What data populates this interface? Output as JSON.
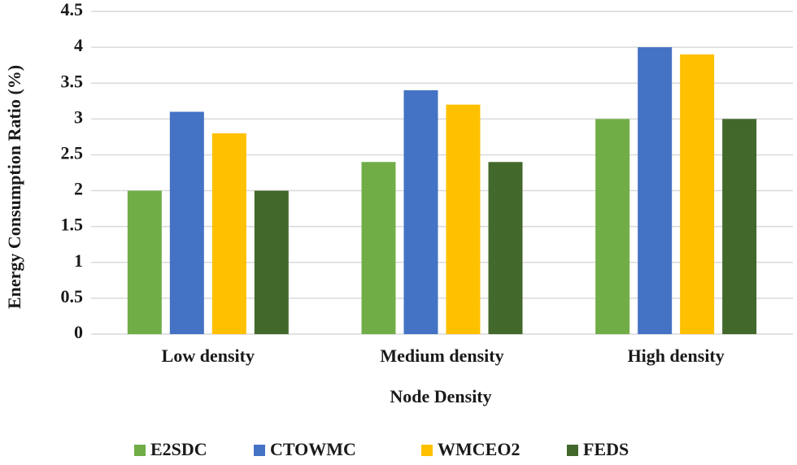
{
  "chart_data": {
    "type": "bar",
    "y_label": "Energy Consumption Ratio (%)",
    "x_label": "Node Density",
    "categories": [
      "Low density",
      "Medium density",
      "High density"
    ],
    "series": [
      {
        "name": "E2SDC",
        "color": "#70ad47",
        "values": [
          2,
          2.4,
          3
        ]
      },
      {
        "name": "CTOWMC",
        "color": "#4472c4",
        "values": [
          3.1,
          3.4,
          4
        ]
      },
      {
        "name": "WMCEO2",
        "color": "#ffc000",
        "values": [
          2.8,
          3.2,
          3.9
        ]
      },
      {
        "name": "FEDS",
        "color": "#43682b",
        "values": [
          2,
          2.4,
          3
        ]
      }
    ],
    "ylim": [
      0,
      4.5
    ],
    "yticks": [
      0,
      0.5,
      1,
      1.5,
      2,
      2.5,
      3,
      3.5,
      4,
      4.5
    ],
    "grid": true,
    "legend": "bottom"
  }
}
